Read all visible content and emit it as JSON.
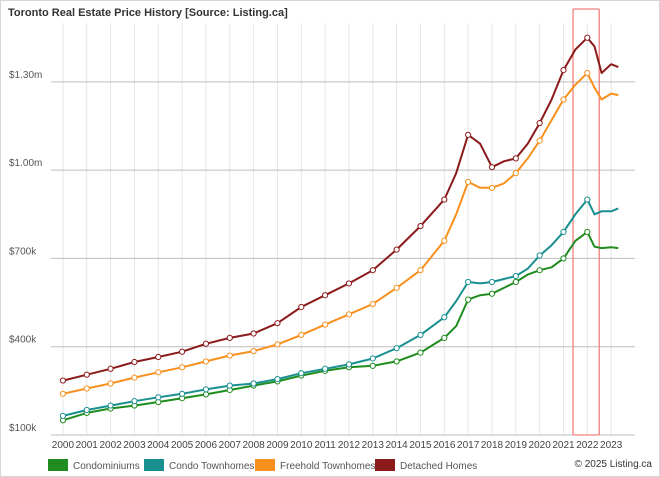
{
  "chart_data": {
    "type": "line",
    "title": "Toronto Real Estate Price History [Source: Listing.ca]",
    "copyright": "© 2025 Listing.ca",
    "xlabel": "",
    "ylabel": "",
    "y_tick_labels": [
      "$100k",
      "$400k",
      "$700k",
      "$1.00m",
      "$1.30m"
    ],
    "y_tick_values": [
      100000,
      400000,
      700000,
      1000000,
      1300000
    ],
    "ylim": [
      100000,
      1500000
    ],
    "x_tick_labels": [
      "2000",
      "2001",
      "2002",
      "2003",
      "2004",
      "2005",
      "2006",
      "2007",
      "2008",
      "2009",
      "2010",
      "2011",
      "2012",
      "2013",
      "2014",
      "2015",
      "2016",
      "2017",
      "2018",
      "2019",
      "2020",
      "2021",
      "2022",
      "2023"
    ],
    "xlim": [
      1999.5,
      2024.0
    ],
    "grid": true,
    "legend_position": "bottom-left",
    "highlight_region": {
      "from": 2021.4,
      "to": 2022.5,
      "color": "#f08080"
    },
    "series": [
      {
        "name": "Condominiums",
        "color": "#1e8c1e",
        "points": [
          [
            2000,
            150000
          ],
          [
            2001,
            175000
          ],
          [
            2002,
            190000
          ],
          [
            2003,
            200000
          ],
          [
            2004,
            212000
          ],
          [
            2005,
            225000
          ],
          [
            2006,
            238000
          ],
          [
            2007,
            253000
          ],
          [
            2008,
            268000
          ],
          [
            2009,
            282000
          ],
          [
            2010,
            302000
          ],
          [
            2011,
            318000
          ],
          [
            2012,
            330000
          ],
          [
            2013,
            335000
          ],
          [
            2014,
            350000
          ],
          [
            2015,
            380000
          ],
          [
            2016,
            430000
          ],
          [
            2016.5,
            470000
          ],
          [
            2017,
            560000
          ],
          [
            2017.5,
            575000
          ],
          [
            2018,
            580000
          ],
          [
            2018.5,
            600000
          ],
          [
            2019,
            620000
          ],
          [
            2019.5,
            645000
          ],
          [
            2020,
            660000
          ],
          [
            2020.5,
            670000
          ],
          [
            2021,
            700000
          ],
          [
            2021.5,
            760000
          ],
          [
            2022,
            790000
          ],
          [
            2022.3,
            740000
          ],
          [
            2022.6,
            735000
          ],
          [
            2023,
            738000
          ],
          [
            2023.3,
            735000
          ]
        ]
      },
      {
        "name": "Condo Townhomes",
        "color": "#1a8f8f",
        "points": [
          [
            2000,
            165000
          ],
          [
            2001,
            185000
          ],
          [
            2002,
            200000
          ],
          [
            2003,
            215000
          ],
          [
            2004,
            228000
          ],
          [
            2005,
            240000
          ],
          [
            2006,
            255000
          ],
          [
            2007,
            268000
          ],
          [
            2008,
            275000
          ],
          [
            2009,
            290000
          ],
          [
            2010,
            310000
          ],
          [
            2011,
            325000
          ],
          [
            2012,
            340000
          ],
          [
            2013,
            360000
          ],
          [
            2014,
            395000
          ],
          [
            2015,
            440000
          ],
          [
            2016,
            500000
          ],
          [
            2016.5,
            555000
          ],
          [
            2017,
            620000
          ],
          [
            2017.5,
            615000
          ],
          [
            2018,
            620000
          ],
          [
            2018.5,
            630000
          ],
          [
            2019,
            640000
          ],
          [
            2019.5,
            665000
          ],
          [
            2020,
            710000
          ],
          [
            2020.5,
            745000
          ],
          [
            2021,
            790000
          ],
          [
            2021.5,
            850000
          ],
          [
            2022,
            900000
          ],
          [
            2022.3,
            850000
          ],
          [
            2022.6,
            860000
          ],
          [
            2023,
            860000
          ],
          [
            2023.3,
            870000
          ]
        ]
      },
      {
        "name": "Freehold Townhomes",
        "color": "#f7901e",
        "points": [
          [
            2000,
            240000
          ],
          [
            2001,
            258000
          ],
          [
            2002,
            275000
          ],
          [
            2003,
            295000
          ],
          [
            2004,
            313000
          ],
          [
            2005,
            330000
          ],
          [
            2006,
            350000
          ],
          [
            2007,
            370000
          ],
          [
            2008,
            385000
          ],
          [
            2009,
            408000
          ],
          [
            2010,
            440000
          ],
          [
            2011,
            475000
          ],
          [
            2012,
            510000
          ],
          [
            2013,
            545000
          ],
          [
            2014,
            600000
          ],
          [
            2015,
            660000
          ],
          [
            2016,
            760000
          ],
          [
            2016.5,
            850000
          ],
          [
            2017,
            960000
          ],
          [
            2017.5,
            940000
          ],
          [
            2018,
            940000
          ],
          [
            2018.5,
            955000
          ],
          [
            2019,
            990000
          ],
          [
            2019.5,
            1040000
          ],
          [
            2020,
            1100000
          ],
          [
            2020.5,
            1170000
          ],
          [
            2021,
            1240000
          ],
          [
            2021.5,
            1290000
          ],
          [
            2022,
            1330000
          ],
          [
            2022.3,
            1280000
          ],
          [
            2022.6,
            1240000
          ],
          [
            2023,
            1260000
          ],
          [
            2023.3,
            1255000
          ]
        ]
      },
      {
        "name": "Detached Homes",
        "color": "#8b1a1a",
        "points": [
          [
            2000,
            285000
          ],
          [
            2001,
            305000
          ],
          [
            2002,
            325000
          ],
          [
            2003,
            348000
          ],
          [
            2004,
            365000
          ],
          [
            2005,
            383000
          ],
          [
            2006,
            410000
          ],
          [
            2007,
            430000
          ],
          [
            2008,
            445000
          ],
          [
            2009,
            480000
          ],
          [
            2010,
            535000
          ],
          [
            2011,
            575000
          ],
          [
            2012,
            615000
          ],
          [
            2013,
            660000
          ],
          [
            2014,
            730000
          ],
          [
            2015,
            810000
          ],
          [
            2016,
            900000
          ],
          [
            2016.5,
            990000
          ],
          [
            2017,
            1120000
          ],
          [
            2017.5,
            1090000
          ],
          [
            2018,
            1010000
          ],
          [
            2018.5,
            1030000
          ],
          [
            2019,
            1040000
          ],
          [
            2019.5,
            1090000
          ],
          [
            2020,
            1160000
          ],
          [
            2020.5,
            1240000
          ],
          [
            2021,
            1340000
          ],
          [
            2021.5,
            1410000
          ],
          [
            2022,
            1450000
          ],
          [
            2022.3,
            1420000
          ],
          [
            2022.6,
            1330000
          ],
          [
            2023,
            1360000
          ],
          [
            2023.3,
            1350000
          ]
        ]
      }
    ]
  }
}
